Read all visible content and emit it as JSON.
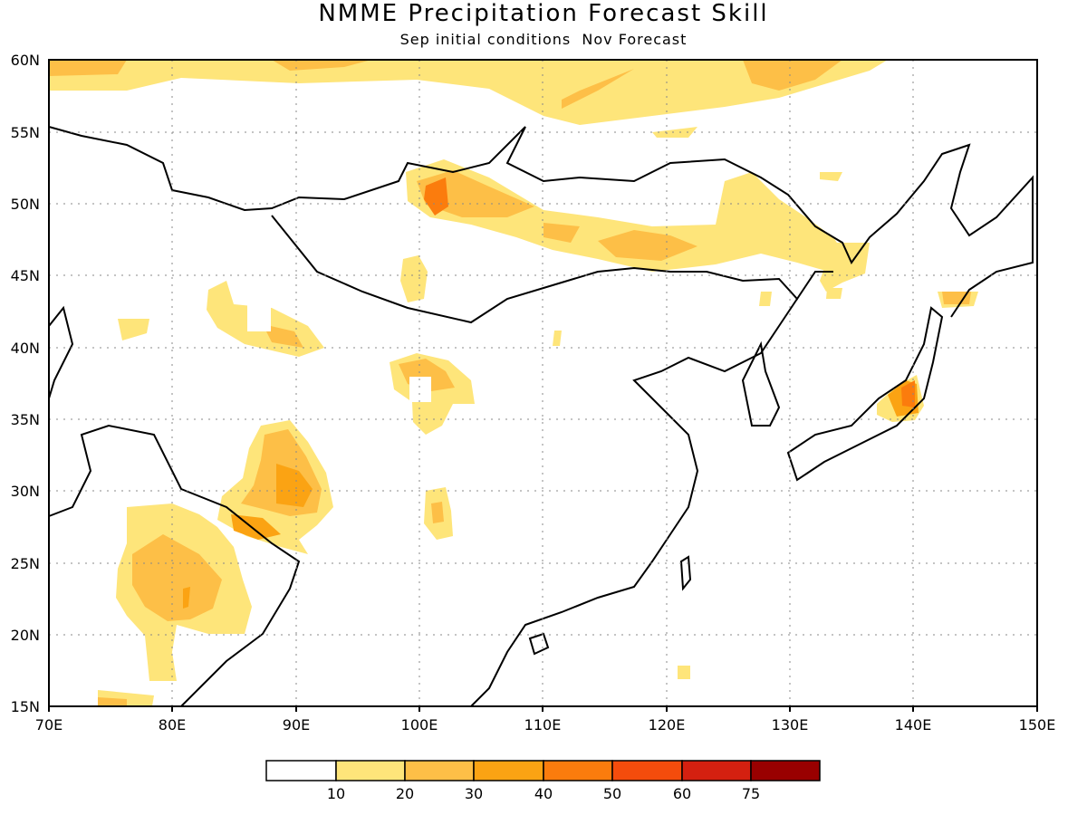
{
  "title": "NMME Precipitation Forecast Skill",
  "subtitle": "Sep initial conditions  Nov Forecast",
  "map": {
    "lon_range": [
      70,
      150
    ],
    "lat_range": [
      15,
      60
    ],
    "lon_ticks": [
      "70E",
      "80E",
      "90E",
      "100E",
      "110E",
      "120E",
      "130E",
      "140E",
      "150E"
    ],
    "lat_ticks": [
      "15N",
      "20N",
      "25N",
      "30N",
      "35N",
      "40N",
      "45N",
      "50N",
      "55N",
      "60N"
    ],
    "gridlines": "dotted"
  },
  "legend": {
    "labels": [
      "10",
      "20",
      "30",
      "40",
      "50",
      "60",
      "75"
    ],
    "colors": [
      "#ffffff",
      "#fee57a",
      "#fdbf47",
      "#fba313",
      "#fb7c0d",
      "#f44c0c",
      "#d42010",
      "#990000"
    ]
  }
}
